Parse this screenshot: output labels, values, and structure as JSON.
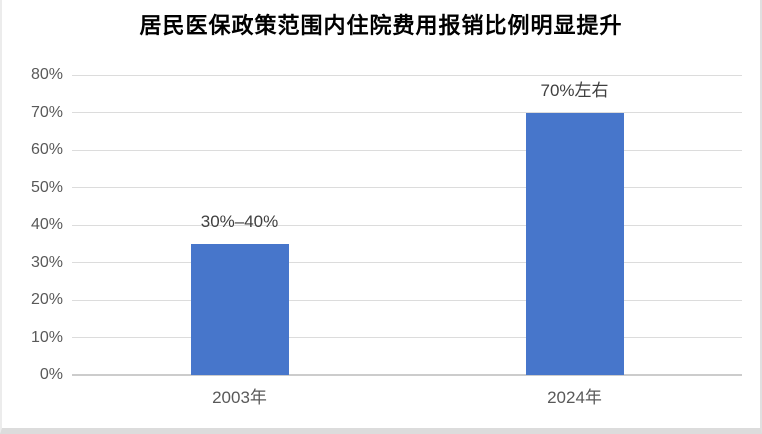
{
  "chart_data": {
    "type": "bar",
    "title": "居民医保政策范围内住院费用报销比例明显提升",
    "xlabel": "",
    "ylabel": "",
    "ylim": [
      0,
      80
    ],
    "grid": true,
    "bar_color": "#4776CB",
    "yticks": [
      {
        "value": 0,
        "label": "0%"
      },
      {
        "value": 10,
        "label": "10%"
      },
      {
        "value": 20,
        "label": "20%"
      },
      {
        "value": 30,
        "label": "30%"
      },
      {
        "value": 40,
        "label": "40%"
      },
      {
        "value": 50,
        "label": "50%"
      },
      {
        "value": 60,
        "label": "60%"
      },
      {
        "value": 70,
        "label": "70%"
      },
      {
        "value": 80,
        "label": "80%"
      }
    ],
    "categories": [
      "2003年",
      "2024年"
    ],
    "values": [
      35,
      70
    ],
    "data_labels": [
      "30%–40%",
      "70%左右"
    ],
    "legend": "none"
  }
}
